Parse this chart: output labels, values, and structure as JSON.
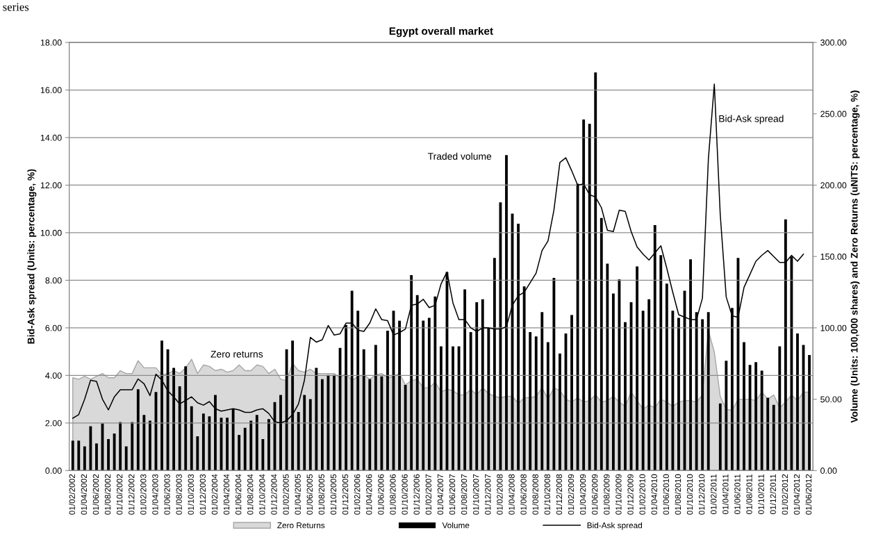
{
  "chart_data": {
    "type": "bar",
    "title": "Egypt overall market",
    "ylabel": "Bid-Ask spread (Units: percentage, %)",
    "y2label": "Volume (Units: 100,000 shares) and Zero Returns (uNITS: percentage, %)",
    "categories": [
      "01/02/2002",
      null,
      "01/04/2002",
      null,
      "01/06/2002",
      null,
      "01/08/2002",
      null,
      "01/10/2002",
      null,
      "01/12/2002",
      null,
      "01/02/2003",
      null,
      "01/04/2003",
      null,
      "01/06/2003",
      null,
      "01/08/2003",
      null,
      "01/10/2003",
      null,
      "01/12/2003",
      null,
      "01/02/2004",
      null,
      "01/04/2004",
      null,
      "01/06/2004",
      null,
      "01/08/2004",
      null,
      "01/10/2004",
      null,
      "01/12/2004",
      null,
      "01/02/2005",
      null,
      "01/04/2005",
      null,
      "01/06/2005",
      null,
      "01/08/2005",
      null,
      "01/10/2005",
      null,
      "01/12/2005",
      null,
      "01/02/2006",
      null,
      "01/04/2006",
      null,
      "01/06/2006",
      null,
      "01/08/2006",
      null,
      "01/10/2006",
      null,
      "01/12/2006",
      null,
      "01/02/2007",
      null,
      "01/04/2007",
      null,
      "01/06/2007",
      null,
      "01/08/2007",
      null,
      "01/10/2007",
      null,
      "01/12/2007",
      null,
      "01/02/2008",
      null,
      "01/04/2008",
      null,
      "01/06/2008",
      null,
      "01/08/2008",
      null,
      "01/10/2008",
      null,
      "01/12/2008",
      null,
      "01/02/2009",
      null,
      "01/04/2009",
      null,
      "01/06/2009",
      null,
      "01/08/2009",
      null,
      "01/10/2009",
      null,
      "01/12/2009",
      null,
      "01/02/2010",
      null,
      "01/04/2010",
      null,
      "01/06/2010",
      null,
      "01/08/2010",
      null,
      "01/10/2010",
      null,
      "01/12/2010",
      null,
      "01/02/2011",
      null,
      "01/04/2011",
      null,
      "01/06/2011",
      null,
      "01/08/2011",
      null,
      "01/10/2011",
      null,
      "01/12/2011",
      null,
      "01/02/2012",
      null,
      "01/04/2012",
      null,
      "01/06/2012"
    ],
    "series": [
      {
        "name": "Zero Returns",
        "type": "area",
        "axis": "y2",
        "color": "#d9d9d9",
        "values": [
          65,
          64,
          66,
          64,
          66,
          68,
          65,
          65,
          70,
          68,
          68,
          77,
          72,
          72,
          72,
          67,
          68,
          70,
          68,
          72,
          78,
          68,
          74,
          73,
          70,
          71,
          69,
          70,
          74,
          70,
          70,
          74,
          73,
          68,
          71,
          64,
          63,
          75,
          70,
          69,
          71,
          68,
          68,
          68,
          68,
          65,
          68,
          63,
          66,
          67,
          64,
          67,
          68,
          65,
          66,
          68,
          60,
          63,
          64,
          58,
          58,
          62,
          55,
          57,
          56,
          53,
          53,
          57,
          53,
          58,
          54,
          52,
          51,
          52,
          52,
          47,
          51,
          51,
          52,
          58,
          50,
          58,
          56,
          50,
          48,
          51,
          48,
          49,
          53,
          48,
          49,
          52,
          48,
          45,
          55,
          49,
          43,
          46,
          44,
          50,
          48,
          45,
          48,
          49,
          49,
          48,
          53,
          98,
          83,
          52,
          43,
          42,
          50,
          50,
          50,
          49,
          55,
          50,
          53,
          44,
          48,
          53,
          49,
          55,
          55
        ]
      },
      {
        "name": "Volume",
        "axis": "y2",
        "color": "#000000",
        "values": [
          21,
          21,
          17,
          31,
          19,
          33,
          22,
          26,
          34,
          17,
          34,
          57,
          39,
          35,
          55,
          91,
          85,
          72,
          59,
          73,
          45,
          24,
          40,
          38,
          53,
          37,
          37,
          43,
          25,
          30,
          35,
          39,
          22,
          36,
          48,
          53,
          85,
          91,
          41,
          53,
          50,
          72,
          64,
          67,
          67,
          86,
          102,
          126,
          112,
          85,
          64,
          88,
          66,
          98,
          112,
          105,
          60,
          137,
          123,
          105,
          107,
          122,
          87,
          139,
          87,
          87,
          127,
          97,
          118,
          120,
          100,
          149,
          188,
          221,
          180,
          173,
          129,
          97,
          94,
          111,
          90,
          135,
          82,
          96,
          109,
          201,
          246,
          243,
          279,
          177,
          145,
          124,
          134,
          104,
          118,
          143,
          112,
          120,
          172,
          151,
          131,
          112,
          107,
          126,
          148,
          111,
          106,
          111,
          null,
          47,
          77,
          114,
          149,
          90,
          74,
          76,
          70,
          51,
          46,
          87,
          176,
          150,
          96,
          88,
          81
        ]
      },
      {
        "name": "Bid-Ask spread",
        "type": "line",
        "axis": "y",
        "color": "#000000",
        "values": [
          2.2,
          2.35,
          3.0,
          3.8,
          3.75,
          3.0,
          2.55,
          3.1,
          3.4,
          3.4,
          3.4,
          3.85,
          3.65,
          3.15,
          4.05,
          3.8,
          3.35,
          3.1,
          2.8,
          2.95,
          3.1,
          2.85,
          2.75,
          2.9,
          2.6,
          2.5,
          2.55,
          2.6,
          2.55,
          2.45,
          2.45,
          2.55,
          2.6,
          2.4,
          2.05,
          2.0,
          2.1,
          2.35,
          2.8,
          3.8,
          5.6,
          5.4,
          5.5,
          6.1,
          5.7,
          5.75,
          6.2,
          6.2,
          5.9,
          5.85,
          6.2,
          6.8,
          6.35,
          6.3,
          5.7,
          5.8,
          5.95,
          6.95,
          7.0,
          7.2,
          6.85,
          6.95,
          7.85,
          8.35,
          7.05,
          6.35,
          6.35,
          6.0,
          5.85,
          6.0,
          6.0,
          5.95,
          5.95,
          6.05,
          6.95,
          7.35,
          7.5,
          7.9,
          8.3,
          9.25,
          9.65,
          10.95,
          12.95,
          13.15,
          12.6,
          12.0,
          12.05,
          11.6,
          11.5,
          11.05,
          10.1,
          10.05,
          10.95,
          10.9,
          10.05,
          9.4,
          9.1,
          8.85,
          9.15,
          9.45,
          8.5,
          7.5,
          6.55,
          6.45,
          6.35,
          6.35,
          7.25,
          13.1,
          16.25,
          10.75,
          7.3,
          6.5,
          6.45,
          7.7,
          8.25,
          8.8,
          9.05,
          9.25,
          9.0,
          8.75,
          8.75,
          9.05,
          8.8,
          9.1,
          null
        ]
      }
    ],
    "ylim": [
      0,
      18
    ],
    "yticks": [
      {
        "value": 0,
        "label": "0.00"
      },
      {
        "value": 2,
        "label": "2.00"
      },
      {
        "value": 4,
        "label": "4.00"
      },
      {
        "value": 6,
        "label": "6.00"
      },
      {
        "value": 8,
        "label": "8.00"
      },
      {
        "value": 10,
        "label": "10.00"
      },
      {
        "value": 12,
        "label": "12.00"
      },
      {
        "value": 14,
        "label": "14.00"
      },
      {
        "value": 16,
        "label": "16.00"
      },
      {
        "value": 18,
        "label": "18.00"
      }
    ],
    "y2lim": [
      0,
      300
    ],
    "y2ticks": [
      {
        "value": 0,
        "label": "0.00"
      },
      {
        "value": 50,
        "label": "50.00"
      },
      {
        "value": 100,
        "label": "100.00"
      },
      {
        "value": 150,
        "label": "150.00"
      },
      {
        "value": 200,
        "label": "200.00"
      },
      {
        "value": 250,
        "label": "250.00"
      },
      {
        "value": 300,
        "label": "300.00"
      }
    ],
    "grid": "y",
    "legend": "bottom",
    "annotations": [
      "series",
      "Zero returns",
      "Traded volume",
      "Bid-Ask spread"
    ]
  }
}
